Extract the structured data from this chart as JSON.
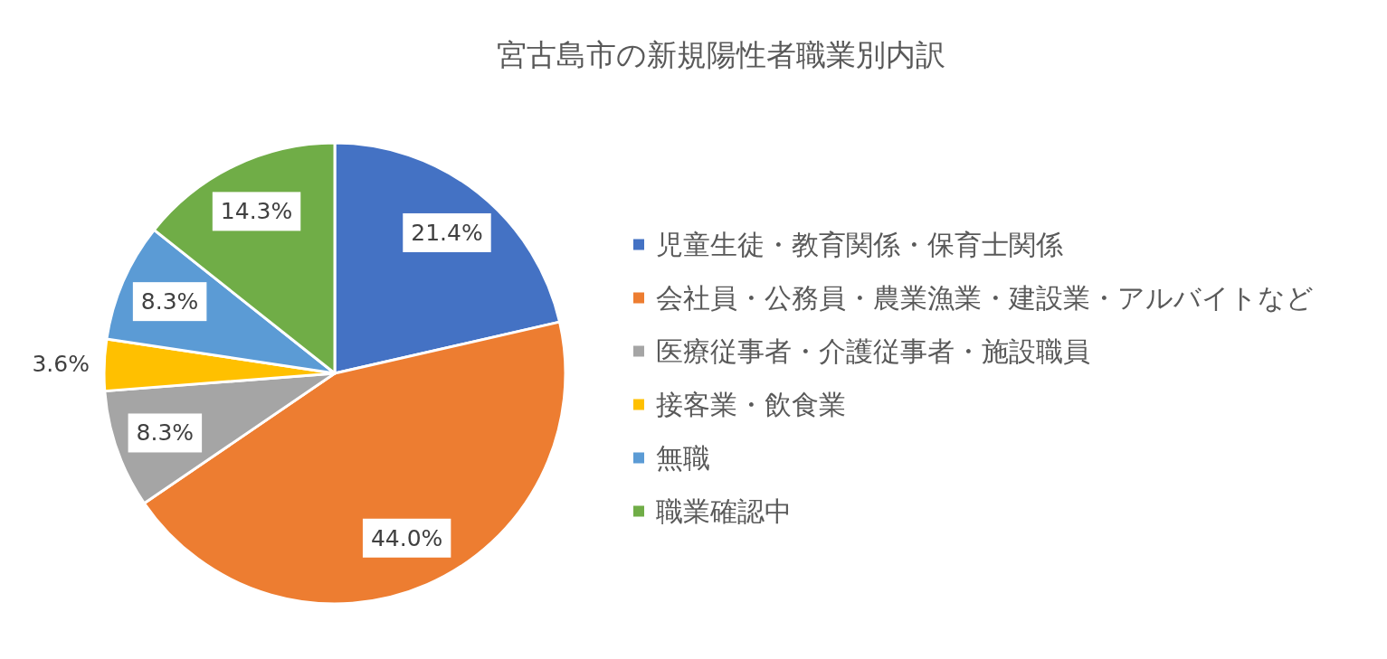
{
  "chart_data": {
    "type": "pie",
    "title": "宮古島市の新規陽性者職業別内訳",
    "categories": [
      "児童生徒・教育関係・保育士関係",
      "会社員・公務員・農業漁業・建設業・アルバイトなど",
      "医療従事者・介護従事者・施設職員",
      "接客業・飲食業",
      "無職",
      "職業確認中"
    ],
    "values": [
      21.4,
      44.0,
      8.3,
      3.6,
      8.3,
      14.3
    ],
    "colors": [
      "#4472c4",
      "#ed7d31",
      "#a5a5a5",
      "#ffc000",
      "#5b9bd5",
      "#70ad47"
    ],
    "value_labels": [
      "21.4%",
      "44.0%",
      "8.3%",
      "3.6%",
      "8.3%",
      "14.3%"
    ],
    "legend": "right"
  }
}
